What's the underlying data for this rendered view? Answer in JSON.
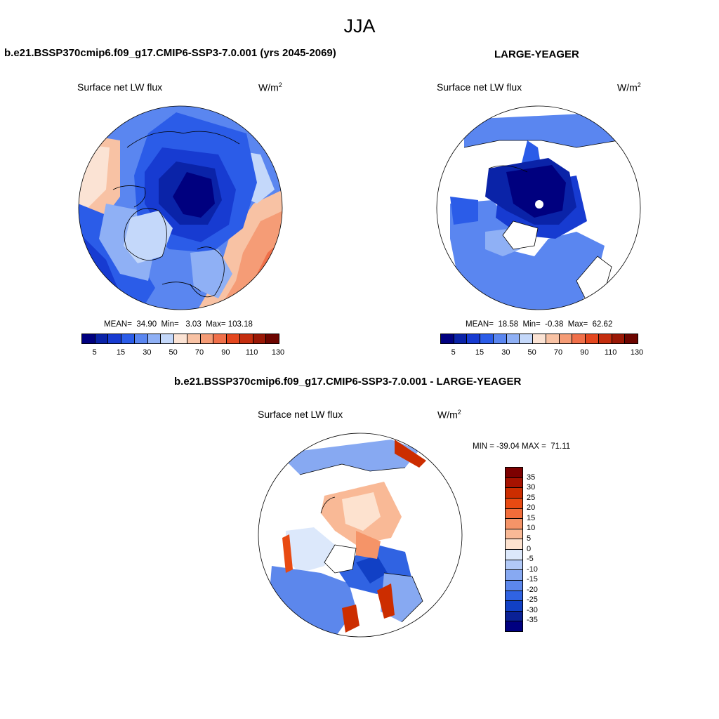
{
  "season": "JJA",
  "panels": {
    "model": {
      "title": "b.e21.BSSP370cmip6.f09_g17.CMIP6-SSP3-7.0.001 (yrs 2045-2069)",
      "variable": "Surface net LW flux",
      "units_base": "W/m",
      "units_exp": "2",
      "stats": "MEAN=  34.90  Min=   3.03  Max= 103.18"
    },
    "obs": {
      "title": "LARGE-YEAGER",
      "variable": "Surface net LW flux",
      "units_base": "W/m",
      "units_exp": "2",
      "stats": "MEAN=  18.58  Min=  -0.38  Max=  62.62"
    },
    "diff": {
      "title": "b.e21.BSSP370cmip6.f09_g17.CMIP6-SSP3-7.0.001 - LARGE-YEAGER",
      "variable": "Surface net LW flux",
      "units_base": "W/m",
      "units_exp": "2",
      "stats": "MIN = -39.04 MAX =  71.11"
    }
  },
  "colorbar_main": {
    "labels": [
      "5",
      "15",
      "30",
      "50",
      "70",
      "90",
      "110",
      "130"
    ],
    "colors": [
      "#00007f",
      "#0a23a8",
      "#173bd1",
      "#2b5ce8",
      "#5a86f0",
      "#8fb0f5",
      "#c4d8fa",
      "#fbe3d4",
      "#f8c2a4",
      "#f59c76",
      "#f0704a",
      "#e4471f",
      "#c42d0e",
      "#9a1806",
      "#6d0500"
    ]
  },
  "colorbar_diff": {
    "labels": [
      "35",
      "30",
      "25",
      "20",
      "15",
      "10",
      "5",
      "0",
      "-5",
      "-10",
      "-15",
      "-20",
      "-25",
      "-30",
      "-35"
    ],
    "colors": [
      "#7d0000",
      "#a61200",
      "#cc2d00",
      "#e84a12",
      "#f26d3a",
      "#f59468",
      "#f9b996",
      "#fde2cf",
      "#dce8fb",
      "#b1c9f7",
      "#87a9f2",
      "#5c87ec",
      "#3063e2",
      "#1140c5",
      "#0a2196",
      "#000080"
    ]
  }
}
